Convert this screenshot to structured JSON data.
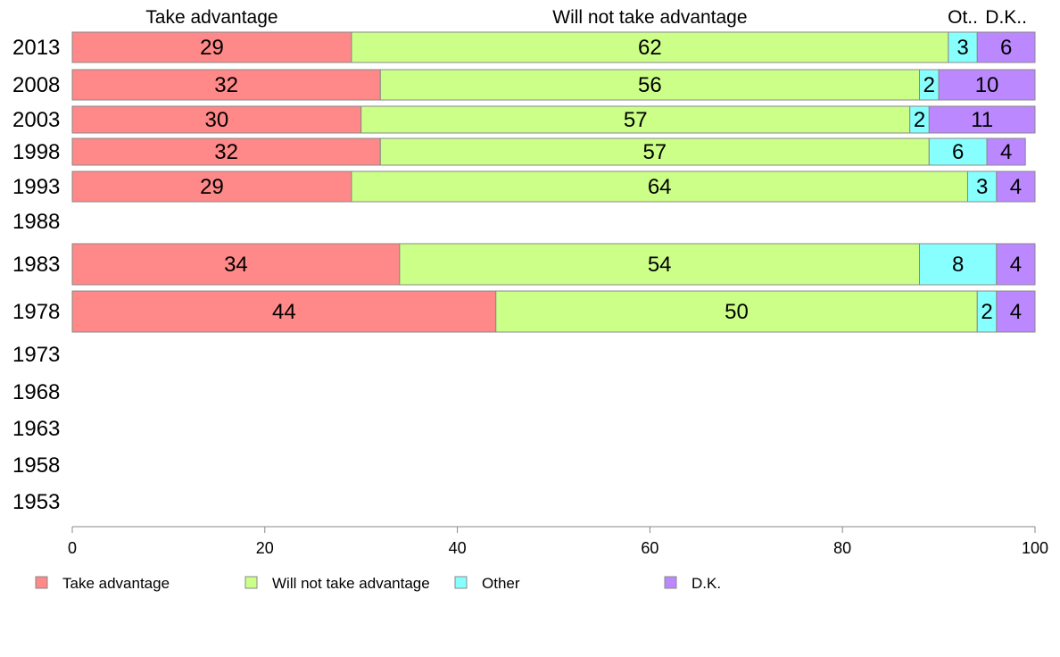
{
  "chart_data": {
    "type": "bar",
    "orientation": "horizontal",
    "stacked": true,
    "categories": [
      "2013",
      "2008",
      "2003",
      "1998",
      "1993",
      "1988",
      "1983",
      "1978",
      "1973",
      "1968",
      "1963",
      "1958",
      "1953"
    ],
    "series": [
      {
        "name": "Take advantage",
        "header": "Take advantage",
        "color": "#ff8888",
        "values": [
          29,
          32,
          30,
          32,
          29,
          null,
          34,
          44,
          null,
          null,
          null,
          null,
          null
        ]
      },
      {
        "name": "Will not take advantage",
        "header": "Will not take advantage",
        "color": "#ccff88",
        "values": [
          62,
          56,
          57,
          57,
          64,
          null,
          54,
          50,
          null,
          null,
          null,
          null,
          null
        ]
      },
      {
        "name": "Other",
        "header": "Ot..",
        "color": "#88ffff",
        "values": [
          3,
          2,
          2,
          6,
          3,
          null,
          8,
          2,
          null,
          null,
          null,
          null,
          null
        ]
      },
      {
        "name": "D.K.",
        "header": "D.K..",
        "color": "#bb88ff",
        "values": [
          6,
          10,
          11,
          4,
          4,
          null,
          4,
          4,
          null,
          null,
          null,
          null,
          null
        ]
      }
    ],
    "xlim": [
      0,
      100
    ],
    "xticks": [
      "0",
      "20",
      "40",
      "60",
      "80",
      "100"
    ],
    "grid": false,
    "legend_position": "bottom"
  }
}
